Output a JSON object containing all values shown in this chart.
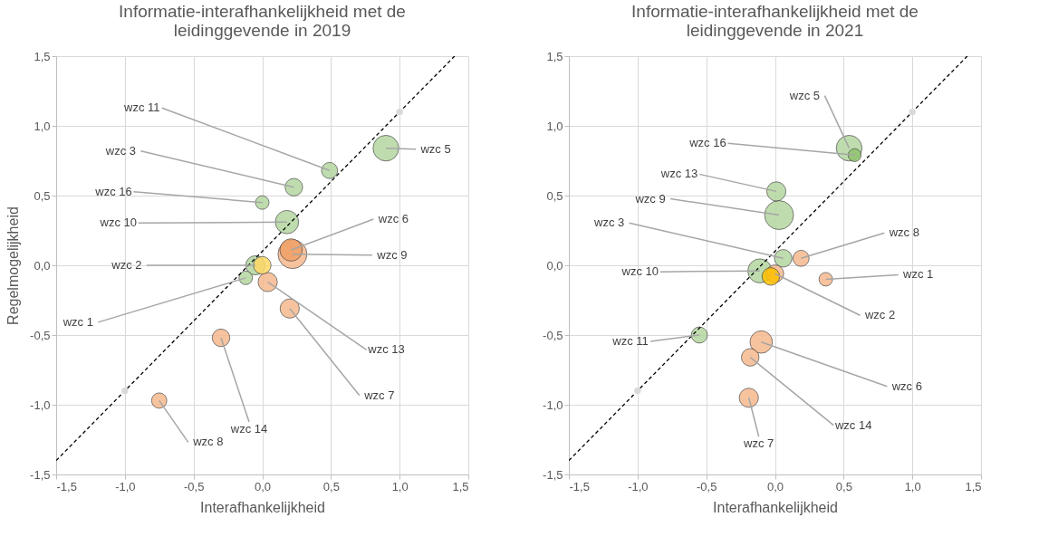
{
  "chart_data": [
    {
      "type": "bubble",
      "title": "Informatie-interafhankelijkheid met de leidinggevende in 2019",
      "xlabel": "Interafhankelijkheid",
      "ylabel": "Regelmogelijkheid",
      "xlim": [
        -1.5,
        1.5
      ],
      "ylim": [
        -1.5,
        1.5
      ],
      "xticks": [
        {
          "value": -1.5,
          "label": "-1,5"
        },
        {
          "value": -1,
          "label": "-1,0"
        },
        {
          "value": -0.5,
          "label": "-0,5"
        },
        {
          "value": 0,
          "label": "0,0"
        },
        {
          "value": 0.5,
          "label": "0,5"
        },
        {
          "value": 1,
          "label": "1,0"
        },
        {
          "value": 1.5,
          "label": "1,5"
        }
      ],
      "yticks": [
        {
          "value": -1.5,
          "label": "-1,5"
        },
        {
          "value": -1,
          "label": "-1,0"
        },
        {
          "value": -0.5,
          "label": "-0,5"
        },
        {
          "value": 0,
          "label": "0,0"
        },
        {
          "value": 0.5,
          "label": "0,5"
        },
        {
          "value": 1,
          "label": "1,0"
        },
        {
          "value": 1.5,
          "label": "1,5"
        }
      ],
      "grid": true,
      "legend": false,
      "series": [
        {
          "x": [
            0.9,
            0.49,
            0.23,
            0,
            0.18,
            0.21,
            0.22,
            -0.05,
            0,
            -0.12,
            0.04,
            0.2,
            -0.3,
            -0.75
          ],
          "values": [
            0.84,
            0.68,
            0.56,
            0.45,
            0.31,
            0.11,
            0.08,
            0,
            0,
            -0.09,
            -0.12,
            -0.31,
            -0.52,
            -0.97
          ],
          "sizes": [
            0.79,
            0.31,
            0.37,
            0.22,
            0.65,
            0.6,
            1,
            0.44,
            0.37,
            0.22,
            0.44,
            0.44,
            0.37,
            0.28
          ],
          "colors": [
            "#b5d7a0",
            "#b5d7a0",
            "#b5d7a0",
            "#b5d7a0",
            "#b5d7a0",
            "#f0a066",
            "#f6b98e",
            "#b5d7a0",
            "#ffd966",
            "#b5d7a0",
            "#f6b98e",
            "#f6b98e",
            "#f6b98e",
            "#f6b98e"
          ]
        },
        {
          "type": "line",
          "x": [
            -1.5,
            1.4
          ],
          "values": [
            -1.4,
            1.5
          ],
          "color": "#000000",
          "line_style": "dashed"
        },
        {
          "type": "scatter",
          "x": [
            -1,
            1
          ],
          "values": [
            -0.9,
            1.1
          ],
          "color": "#d9d9d9",
          "marker": "circle"
        }
      ],
      "annotations": [
        {
          "text": "wzc 5",
          "x": 0.9,
          "y": 0.84
        },
        {
          "text": "wzc 11",
          "x": 0.49,
          "y": 0.68
        },
        {
          "text": "wzc 3",
          "x": 0.23,
          "y": 0.56
        },
        {
          "text": "wzc 16",
          "x": 0,
          "y": 0.45
        },
        {
          "text": "wzc 10",
          "x": 0.18,
          "y": 0.31
        },
        {
          "text": "wzc 6",
          "x": 0.21,
          "y": 0.11
        },
        {
          "text": "wzc 9",
          "x": 0.22,
          "y": 0.08
        },
        {
          "text": "wzc 2",
          "x": -0.05,
          "y": 0
        },
        {
          "text": "wzc 1",
          "x": -0.12,
          "y": -0.09
        },
        {
          "text": "wzc 13",
          "x": 0.04,
          "y": -0.12
        },
        {
          "text": "wzc 7",
          "x": 0.2,
          "y": -0.31
        },
        {
          "text": "wzc 14",
          "x": -0.3,
          "y": -0.52
        },
        {
          "text": "wzc 8",
          "x": -0.75,
          "y": -0.97
        }
      ]
    },
    {
      "type": "bubble",
      "title": "Informatie-interafhankelijkheid met de leidinggevende in 2021",
      "xlabel": "Interafhankelijkheid",
      "xlim": [
        -1.5,
        1.5
      ],
      "ylim": [
        -1.5,
        1.5
      ],
      "xticks": [
        {
          "value": -1.5,
          "label": "-1,5"
        },
        {
          "value": -1,
          "label": "-1,0"
        },
        {
          "value": -0.5,
          "label": "-0,5"
        },
        {
          "value": 0,
          "label": "0,0"
        },
        {
          "value": 0.5,
          "label": "0,5"
        },
        {
          "value": 1,
          "label": "1,0"
        },
        {
          "value": 1.5,
          "label": "1,5"
        }
      ],
      "yticks": [
        {
          "value": -1.5,
          "label": "-1,5"
        },
        {
          "value": -1,
          "label": "-1,0"
        },
        {
          "value": -0.5,
          "label": "-0,5"
        },
        {
          "value": 0,
          "label": "0,0"
        },
        {
          "value": 0.5,
          "label": "0,5"
        },
        {
          "value": 1,
          "label": "1,0"
        },
        {
          "value": 1.5,
          "label": "1,5"
        }
      ],
      "grid": true,
      "legend": false,
      "series": [
        {
          "x": [
            0.54,
            0.58,
            0.01,
            0.03,
            0.06,
            0.19,
            -0.11,
            0,
            -0.03,
            0.37,
            -0.55,
            -0.1,
            -0.18,
            -0.19
          ],
          "values": [
            0.84,
            0.79,
            0.53,
            0.36,
            0.05,
            0.05,
            -0.04,
            -0.06,
            -0.08,
            -0.1,
            -0.5,
            -0.55,
            -0.66,
            -0.95
          ],
          "sizes": [
            0.79,
            0.2,
            0.44,
            1,
            0.37,
            0.31,
            0.69,
            0.37,
            0.37,
            0.22,
            0.31,
            0.6,
            0.37,
            0.44
          ],
          "colors": [
            "#b5d7a0",
            "#8fc46e",
            "#b5d7a0",
            "#b5d7a0",
            "#b5d7a0",
            "#f6b98e",
            "#b5d7a0",
            "#f6b98e",
            "#ffc000",
            "#f6b98e",
            "#b5d7a0",
            "#f6b98e",
            "#f6b98e",
            "#f6b98e"
          ]
        },
        {
          "type": "line",
          "x": [
            -1.5,
            1.4
          ],
          "values": [
            -1.4,
            1.5
          ],
          "color": "#000000",
          "line_style": "dashed"
        },
        {
          "type": "scatter",
          "x": [
            -1,
            1
          ],
          "values": [
            -0.9,
            1.1
          ],
          "color": "#d9d9d9",
          "marker": "circle"
        }
      ],
      "annotations": [
        {
          "text": "wzc 5",
          "x": 0.54,
          "y": 0.84
        },
        {
          "text": "wzc 16",
          "x": 0.58,
          "y": 0.79
        },
        {
          "text": "wzc 13",
          "x": 0.01,
          "y": 0.53
        },
        {
          "text": "wzc 9",
          "x": 0.03,
          "y": 0.36
        },
        {
          "text": "wzc 3",
          "x": 0.06,
          "y": 0.05
        },
        {
          "text": "wzc 8",
          "x": 0.19,
          "y": 0.05
        },
        {
          "text": "wzc 10",
          "x": -0.11,
          "y": -0.04
        },
        {
          "text": "wzc 2",
          "x": 0,
          "y": -0.06
        },
        {
          "text": "wzc 1",
          "x": 0.37,
          "y": -0.1
        },
        {
          "text": "wzc 11",
          "x": -0.55,
          "y": -0.5
        },
        {
          "text": "wzc 6",
          "x": -0.1,
          "y": -0.55
        },
        {
          "text": "wzc 14",
          "x": -0.18,
          "y": -0.66
        },
        {
          "text": "wzc 7",
          "x": -0.19,
          "y": -0.95
        }
      ]
    }
  ]
}
